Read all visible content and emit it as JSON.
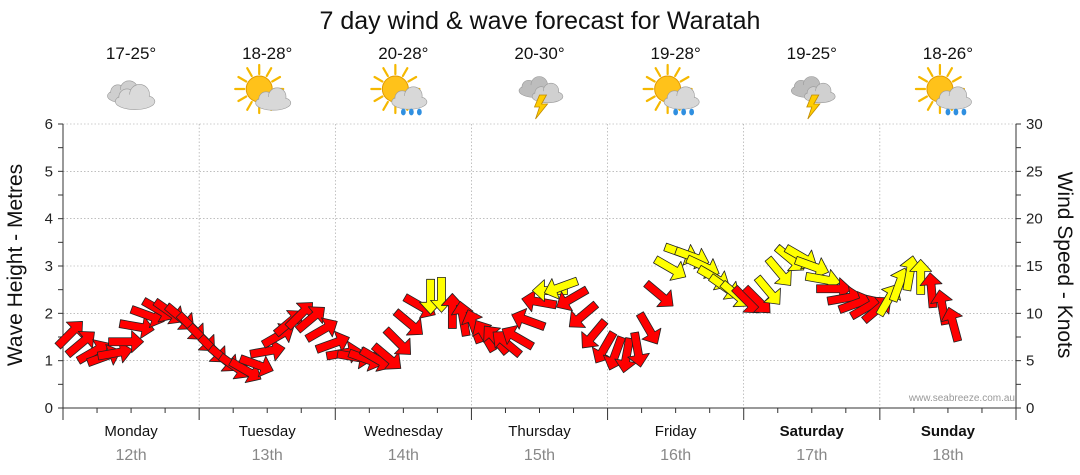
{
  "title": "7 day wind & wave forecast for Waratah",
  "credit": "www.seabreeze.com.au",
  "days": [
    {
      "day": "Monday",
      "date": "12th",
      "temp": "17-25°",
      "icon": "cloudy-icon",
      "bold": false
    },
    {
      "day": "Tuesday",
      "date": "13th",
      "temp": "18-28°",
      "icon": "sun-cloud-icon",
      "bold": false
    },
    {
      "day": "Wednesday",
      "date": "14th",
      "temp": "20-28°",
      "icon": "sun-cloud-rain-icon",
      "bold": false
    },
    {
      "day": "Thursday",
      "date": "15th",
      "temp": "20-30°",
      "icon": "storm-icon",
      "bold": false
    },
    {
      "day": "Friday",
      "date": "16th",
      "temp": "19-28°",
      "icon": "sun-cloud-rain-icon",
      "bold": false
    },
    {
      "day": "Saturday",
      "date": "17th",
      "temp": "19-25°",
      "icon": "storm-icon",
      "bold": true
    },
    {
      "day": "Sunday",
      "date": "18th",
      "temp": "18-26°",
      "icon": "sun-cloud-rain-icon",
      "bold": true
    }
  ],
  "chart_data": {
    "type": "line",
    "title": "7 day wind & wave forecast for Waratah",
    "ylabel": "Wave Height - Metres",
    "y2label": "Wind Speed - Knots",
    "ylim": [
      0,
      6
    ],
    "y2lim": [
      0,
      30
    ],
    "yticks": [
      0,
      1,
      2,
      3,
      4,
      5,
      6
    ],
    "y2ticks": [
      0,
      5,
      10,
      15,
      20,
      25,
      30
    ],
    "grid": true,
    "colors": {
      "red": "#ff0000",
      "yellow": "#ffff00",
      "outline": "#222222",
      "grid": "#999999"
    },
    "wind_series": [
      {
        "d": 0.05,
        "v": 7.8,
        "c": "red"
      },
      {
        "d": 0.13,
        "v": 6.8,
        "c": "red"
      },
      {
        "d": 0.22,
        "v": 5.9,
        "c": "red"
      },
      {
        "d": 0.3,
        "v": 5.4,
        "c": "red"
      },
      {
        "d": 0.38,
        "v": 5.8,
        "c": "red"
      },
      {
        "d": 0.46,
        "v": 7.0,
        "c": "red"
      },
      {
        "d": 0.54,
        "v": 8.6,
        "c": "red"
      },
      {
        "d": 0.62,
        "v": 9.8,
        "c": "red"
      },
      {
        "d": 0.7,
        "v": 10.4,
        "c": "red"
      },
      {
        "d": 0.78,
        "v": 10.2,
        "c": "red"
      },
      {
        "d": 0.86,
        "v": 9.6,
        "c": "red"
      },
      {
        "d": 0.94,
        "v": 8.6,
        "c": "red"
      },
      {
        "d": 1.02,
        "v": 7.4,
        "c": "red"
      },
      {
        "d": 1.1,
        "v": 6.2,
        "c": "red"
      },
      {
        "d": 1.18,
        "v": 5.2,
        "c": "red"
      },
      {
        "d": 1.26,
        "v": 4.4,
        "c": "red"
      },
      {
        "d": 1.34,
        "v": 4.0,
        "c": "red"
      },
      {
        "d": 1.42,
        "v": 4.6,
        "c": "red"
      },
      {
        "d": 1.5,
        "v": 6.0,
        "c": "red"
      },
      {
        "d": 1.58,
        "v": 7.6,
        "c": "red"
      },
      {
        "d": 1.66,
        "v": 9.0,
        "c": "red"
      },
      {
        "d": 1.74,
        "v": 9.8,
        "c": "red"
      },
      {
        "d": 1.82,
        "v": 9.4,
        "c": "red"
      },
      {
        "d": 1.9,
        "v": 8.2,
        "c": "red"
      },
      {
        "d": 1.98,
        "v": 6.8,
        "c": "red"
      },
      {
        "d": 2.06,
        "v": 5.8,
        "c": "red"
      },
      {
        "d": 2.14,
        "v": 5.4,
        "c": "red"
      },
      {
        "d": 2.22,
        "v": 5.2,
        "c": "red"
      },
      {
        "d": 2.3,
        "v": 5.2,
        "c": "red"
      },
      {
        "d": 2.38,
        "v": 5.4,
        "c": "red"
      },
      {
        "d": 2.46,
        "v": 7.0,
        "c": "red"
      },
      {
        "d": 2.54,
        "v": 9.0,
        "c": "red"
      },
      {
        "d": 2.62,
        "v": 10.8,
        "c": "red"
      },
      {
        "d": 2.7,
        "v": 11.8,
        "c": "yellow"
      },
      {
        "d": 2.78,
        "v": 12.0,
        "c": "yellow"
      },
      {
        "d": 2.86,
        "v": 10.2,
        "c": "red"
      },
      {
        "d": 2.94,
        "v": 9.4,
        "c": "red"
      },
      {
        "d": 3.02,
        "v": 8.6,
        "c": "red"
      },
      {
        "d": 3.1,
        "v": 7.6,
        "c": "red"
      },
      {
        "d": 3.18,
        "v": 7.2,
        "c": "red"
      },
      {
        "d": 3.26,
        "v": 6.8,
        "c": "red"
      },
      {
        "d": 3.34,
        "v": 7.4,
        "c": "red"
      },
      {
        "d": 3.42,
        "v": 9.2,
        "c": "red"
      },
      {
        "d": 3.5,
        "v": 11.2,
        "c": "red"
      },
      {
        "d": 3.58,
        "v": 12.4,
        "c": "yellow"
      },
      {
        "d": 3.66,
        "v": 12.8,
        "c": "yellow"
      },
      {
        "d": 3.74,
        "v": 11.6,
        "c": "red"
      },
      {
        "d": 3.82,
        "v": 9.8,
        "c": "red"
      },
      {
        "d": 3.9,
        "v": 7.8,
        "c": "red"
      },
      {
        "d": 3.98,
        "v": 6.4,
        "c": "red"
      },
      {
        "d": 4.06,
        "v": 5.8,
        "c": "red"
      },
      {
        "d": 4.14,
        "v": 5.6,
        "c": "red"
      },
      {
        "d": 4.22,
        "v": 6.2,
        "c": "red"
      },
      {
        "d": 4.3,
        "v": 8.4,
        "c": "red"
      },
      {
        "d": 4.38,
        "v": 12.0,
        "c": "red"
      },
      {
        "d": 4.46,
        "v": 14.8,
        "c": "yellow"
      },
      {
        "d": 4.54,
        "v": 16.4,
        "c": "yellow"
      },
      {
        "d": 4.62,
        "v": 16.0,
        "c": "yellow"
      },
      {
        "d": 4.7,
        "v": 15.0,
        "c": "yellow"
      },
      {
        "d": 4.78,
        "v": 13.8,
        "c": "yellow"
      },
      {
        "d": 4.86,
        "v": 12.8,
        "c": "yellow"
      },
      {
        "d": 4.94,
        "v": 12.0,
        "c": "yellow"
      },
      {
        "d": 5.02,
        "v": 11.4,
        "c": "red"
      },
      {
        "d": 5.1,
        "v": 11.4,
        "c": "red"
      },
      {
        "d": 5.18,
        "v": 12.4,
        "c": "yellow"
      },
      {
        "d": 5.26,
        "v": 14.4,
        "c": "yellow"
      },
      {
        "d": 5.34,
        "v": 15.8,
        "c": "yellow"
      },
      {
        "d": 5.42,
        "v": 16.0,
        "c": "yellow"
      },
      {
        "d": 5.5,
        "v": 15.0,
        "c": "yellow"
      },
      {
        "d": 5.58,
        "v": 13.6,
        "c": "yellow"
      },
      {
        "d": 5.66,
        "v": 12.6,
        "c": "red"
      },
      {
        "d": 5.74,
        "v": 11.6,
        "c": "red"
      },
      {
        "d": 5.82,
        "v": 11.0,
        "c": "red"
      },
      {
        "d": 5.9,
        "v": 10.6,
        "c": "red"
      },
      {
        "d": 5.98,
        "v": 10.4,
        "c": "red"
      },
      {
        "d": 6.06,
        "v": 11.4,
        "c": "yellow"
      },
      {
        "d": 6.14,
        "v": 13.0,
        "c": "yellow"
      },
      {
        "d": 6.22,
        "v": 14.2,
        "c": "yellow"
      },
      {
        "d": 6.3,
        "v": 13.8,
        "c": "yellow"
      },
      {
        "d": 6.38,
        "v": 12.4,
        "c": "red"
      },
      {
        "d": 6.46,
        "v": 10.6,
        "c": "red"
      },
      {
        "d": 6.54,
        "v": 8.8,
        "c": "red"
      }
    ]
  }
}
